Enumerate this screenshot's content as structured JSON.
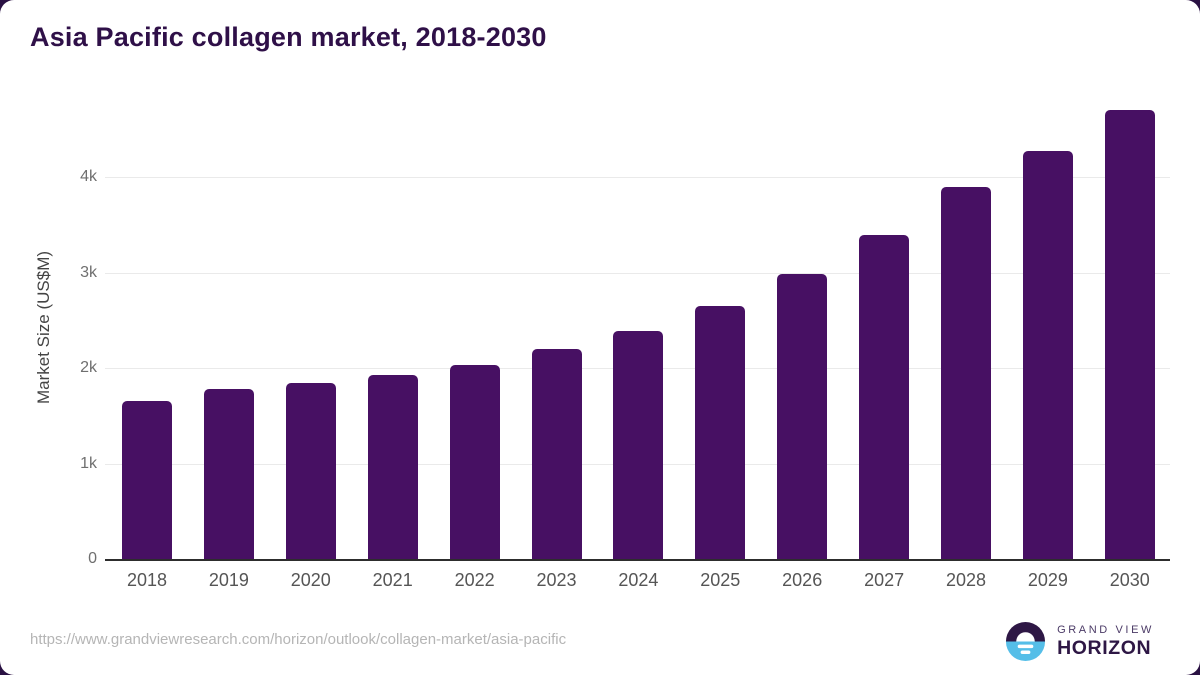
{
  "card": {
    "title": "Asia Pacific collagen market, 2018-2030",
    "source_url": "https://www.grandviewresearch.com/horizon/outlook/collagen-market/asia-pacific",
    "logo": {
      "line1": "GRAND VIEW",
      "line2": "HORIZON"
    }
  },
  "colors": {
    "bar": "#471063",
    "title": "#2f1048",
    "grid": "#eaeaea",
    "axis_line": "#2d2d2d",
    "tick": "#6f6f6f",
    "x_tick": "#555555",
    "url": "#b5b5b5",
    "logo_dark": "#2e1745",
    "logo_blue": "#55bee8",
    "page_background": "#2a1143"
  },
  "chart_data": {
    "type": "bar",
    "title": "Asia Pacific collagen market, 2018-2030",
    "categories": [
      "2018",
      "2019",
      "2020",
      "2021",
      "2022",
      "2023",
      "2024",
      "2025",
      "2026",
      "2027",
      "2028",
      "2029",
      "2030"
    ],
    "values": [
      1660,
      1780,
      1840,
      1930,
      2030,
      2200,
      2390,
      2650,
      2990,
      3390,
      3900,
      4270,
      4700
    ],
    "xlabel": "",
    "ylabel": "Market Size (US$M)",
    "ylim": [
      0,
      4860
    ],
    "yticks": [
      {
        "v": 0,
        "label": "0"
      },
      {
        "v": 1000,
        "label": "1k"
      },
      {
        "v": 2000,
        "label": "2k"
      },
      {
        "v": 3000,
        "label": "3k"
      },
      {
        "v": 4000,
        "label": "4k"
      }
    ],
    "grid": "horizontal",
    "legend": "none",
    "bar_color": "#471063"
  }
}
